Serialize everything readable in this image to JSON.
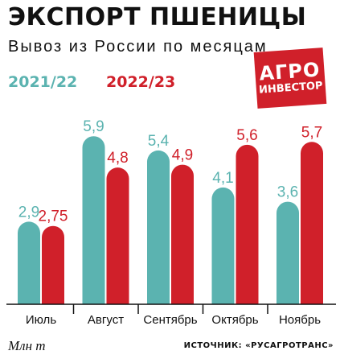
{
  "header": {
    "title": "ЭКСПОРТ ПШЕНИЦЫ",
    "subtitle": "Вывоз из России по месяцам"
  },
  "logo": {
    "line1": "АГРО",
    "line2": "ИНВЕСТОР"
  },
  "footer": {
    "unit": "Млн т",
    "source": "ИСТОЧНИК: «РУСАГРОТРАНС»"
  },
  "colors": {
    "series_2021": "#5bb3b0",
    "series_2022": "#d0202a",
    "text": "#111111"
  },
  "chart_data": {
    "type": "bar",
    "title": "ЭКСПОРТ ПШЕНИЦЫ",
    "subtitle": "Вывоз из России по месяцам",
    "categories": [
      "Июль",
      "Август",
      "Сентябрь",
      "Октябрь",
      "Ноябрь"
    ],
    "series": [
      {
        "name": "2021/22",
        "values": [
          2.9,
          5.9,
          5.4,
          4.1,
          3.6
        ],
        "labels": [
          "2,9",
          "5,9",
          "5,4",
          "4,1",
          "3,6"
        ],
        "color": "#5bb3b0"
      },
      {
        "name": "2022/23",
        "values": [
          2.75,
          4.8,
          4.9,
          5.6,
          5.7
        ],
        "labels": [
          "2,75",
          "4,8",
          "4,9",
          "5,6",
          "5,7"
        ],
        "color": "#d0202a"
      }
    ],
    "ylabel": "Млн т",
    "ylim": [
      0,
      6.5
    ],
    "grid": false,
    "legend": "top-left"
  }
}
